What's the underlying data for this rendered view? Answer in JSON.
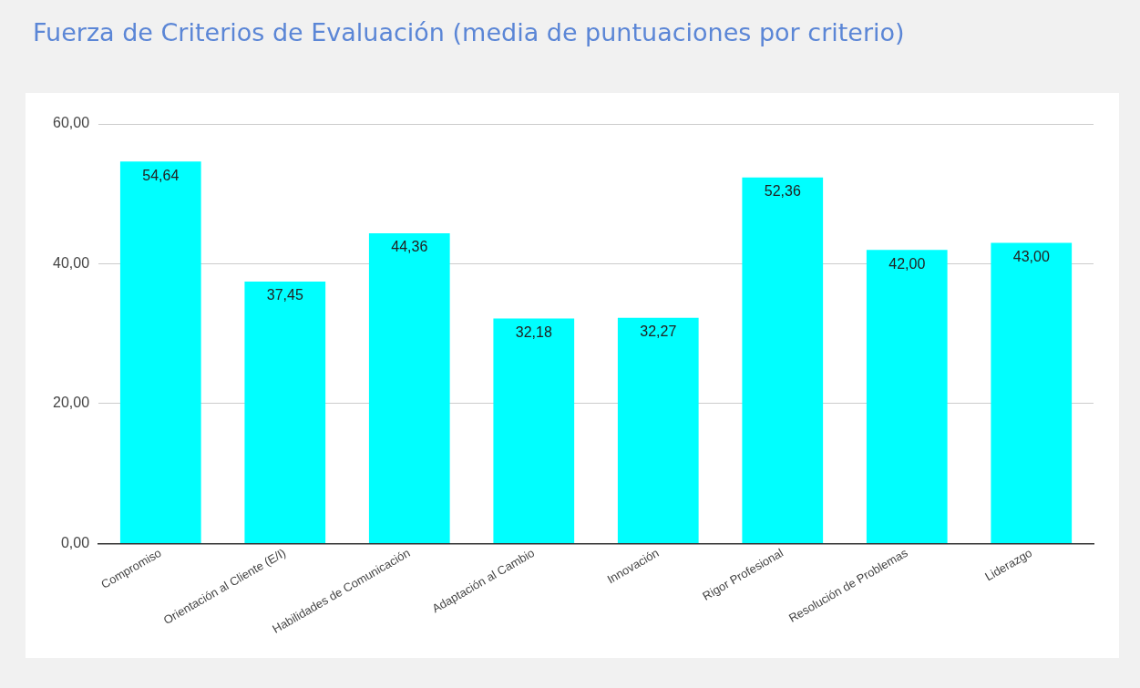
{
  "chart_data": {
    "type": "bar",
    "title": "Fuerza de Criterios de Evaluación (media de puntuaciones por criterio)",
    "categories": [
      "Compromiso",
      "Orientación al Cliente (E/I)",
      "Habilidades de Comunicación",
      "Adaptación al Cambio",
      "Innovación",
      "Rigor Profesional",
      "Resolución de Problemas",
      "Liderazgo"
    ],
    "values": [
      54.64,
      37.45,
      44.36,
      32.18,
      32.27,
      52.36,
      42.0,
      43.0
    ],
    "value_labels": [
      "54,64",
      "37,45",
      "44,36",
      "32,18",
      "32,27",
      "52,36",
      "42,00",
      "43,00"
    ],
    "color": "#00ffff",
    "ylim": [
      0,
      60
    ],
    "yticks": [
      {
        "value": 0,
        "label": "0,00"
      },
      {
        "value": 20,
        "label": "20,00"
      },
      {
        "value": 40,
        "label": "40,00"
      },
      {
        "value": 60,
        "label": "60,00"
      }
    ],
    "grid": "y",
    "legend": false
  }
}
